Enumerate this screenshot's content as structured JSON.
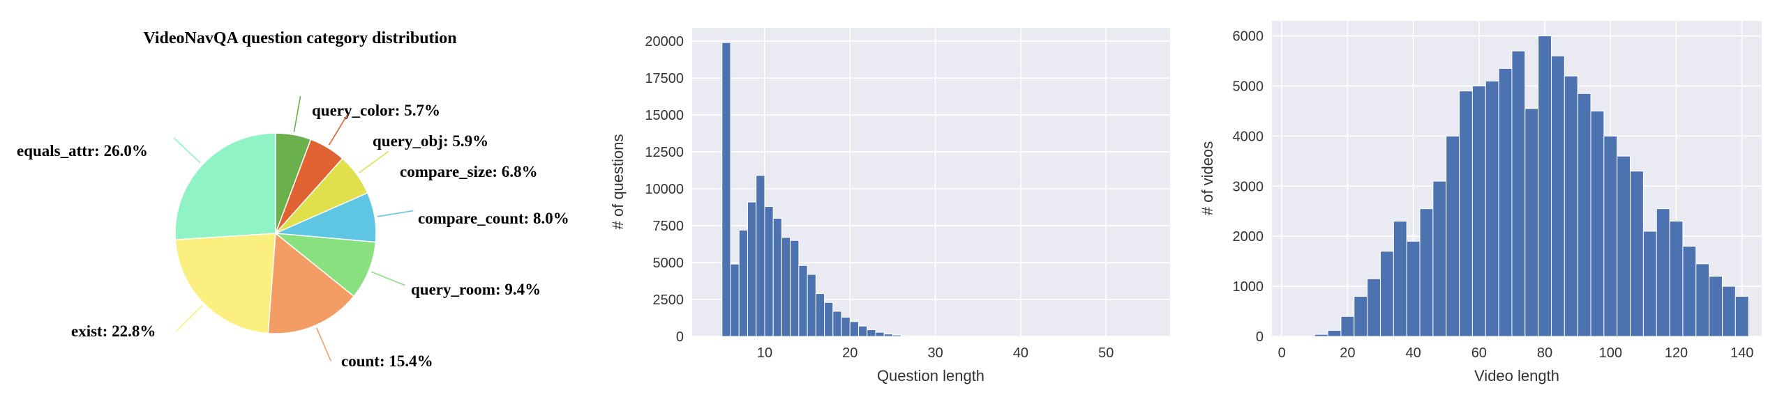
{
  "chart_data": [
    {
      "type": "pie",
      "title": "VideoNavQA question category distribution",
      "categories": [
        "query_color",
        "query_obj",
        "compare_size",
        "compare_count",
        "query_room",
        "count",
        "exist",
        "equals_attr"
      ],
      "values": [
        5.7,
        5.9,
        6.8,
        8.0,
        9.4,
        15.4,
        22.8,
        26.0
      ],
      "labels": [
        "query_color: 5.7%",
        "query_obj: 5.9%",
        "compare_size: 6.8%",
        "compare_count: 8.0%",
        "query_room: 9.4%",
        "count: 15.4%",
        "exist: 22.8%",
        "equals_attr: 26.0%"
      ],
      "colors": [
        "#6ab04c",
        "#e06132",
        "#e0df4c",
        "#5ec6e2",
        "#88e17e",
        "#f39c63",
        "#fbef7f",
        "#90f3c6"
      ],
      "start_angle_deg": 90,
      "direction": "clockwise"
    },
    {
      "type": "bar",
      "xlabel": "Question length",
      "ylabel": "# of questions",
      "x": [
        5,
        6,
        7,
        8,
        9,
        10,
        11,
        12,
        13,
        14,
        15,
        16,
        17,
        18,
        19,
        20,
        21,
        22,
        23,
        24,
        25,
        26,
        27,
        28,
        29,
        30
      ],
      "values": [
        19900,
        4900,
        7200,
        9100,
        10900,
        8800,
        8000,
        6700,
        6500,
        4800,
        4200,
        2900,
        2300,
        1700,
        1300,
        1000,
        700,
        450,
        280,
        160,
        90,
        50,
        30,
        15,
        10,
        5
      ],
      "bin_width": 1,
      "xlim": [
        1.5,
        57.5
      ],
      "ylim": [
        0,
        20900
      ],
      "xticks": [
        10,
        20,
        30,
        40,
        50
      ],
      "yticks": [
        0,
        2500,
        5000,
        7500,
        10000,
        12500,
        15000,
        17500,
        20000
      ],
      "grid": true,
      "bar_color": "#4c72b0"
    },
    {
      "type": "bar",
      "xlabel": "Video length",
      "ylabel": "# of videos",
      "x": [
        10,
        14,
        18,
        22,
        26,
        30,
        34,
        38,
        42,
        46,
        50,
        54,
        58,
        62,
        66,
        70,
        74,
        78,
        82,
        86,
        90,
        94,
        98,
        102,
        106,
        110,
        114,
        118,
        122,
        126,
        130,
        134,
        138
      ],
      "values": [
        40,
        120,
        400,
        800,
        1150,
        1700,
        2300,
        1900,
        2550,
        3100,
        4000,
        4900,
        5000,
        5100,
        5350,
        5700,
        4550,
        6000,
        5600,
        5200,
        4850,
        4500,
        4000,
        3600,
        3300,
        2100,
        2550,
        2300,
        1800,
        1450,
        1200,
        1000,
        800
      ],
      "bin_width": 4,
      "xlim": [
        -3,
        146
      ],
      "ylim": [
        0,
        6300
      ],
      "xticks": [
        0,
        20,
        40,
        60,
        80,
        100,
        120,
        140
      ],
      "yticks": [
        0,
        1000,
        2000,
        3000,
        4000,
        5000,
        6000
      ],
      "grid": true,
      "bar_color": "#4c72b0"
    }
  ]
}
